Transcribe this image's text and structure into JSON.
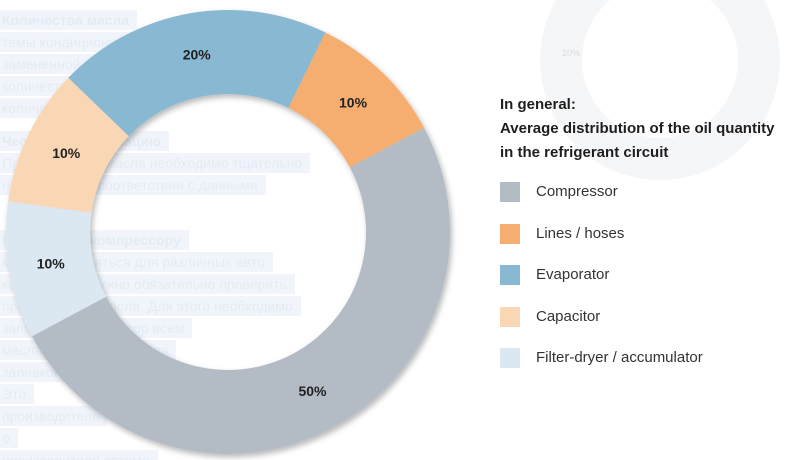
{
  "background_text": [
    "Количества масла",
    "темы кондиционирования после ремонта масло",
    "замененной детали, необходимо доливать",
    "количество масла",
    "количества",
    "Чество спецификацию",
    "При доливании масла необходимо тщательно",
    "ность масла в соответствии с данными",
    "Относится к компрессору",
    "может применяться для различных авто",
    "компрессора нужно обязательно проверить",
    "применяемого масла. Для этого необходимо",
    "заправить компрессор всем",
    "масла (количество масла",
    "заливкой необходимо",
    "Это",
    "производителя",
    "о",
    "производителя автомо"
  ],
  "background_ghost_label": "20%",
  "legend": {
    "title_line1": "In general:",
    "title_line2": "Average distribution of the oil quantity",
    "title_line3": "in the refrigerant circuit"
  },
  "chart_data": {
    "type": "pie",
    "variant": "donut",
    "title": "In general: Average distribution of the oil quantity in the refrigerant circuit",
    "legend_position": "right",
    "slices": [
      {
        "label": "Compressor",
        "value": 50,
        "display": "50%",
        "color": "#b3bcc5"
      },
      {
        "label": "Filter-dryer / accumulator",
        "value": 10,
        "display": "10%",
        "color": "#dbe7f1"
      },
      {
        "label": "Capacitor",
        "value": 10,
        "display": "10%",
        "color": "#fad7b4"
      },
      {
        "label": "Evaporator",
        "value": 20,
        "display": "20%",
        "color": "#89b8d3"
      },
      {
        "label": "Lines / hoses",
        "value": 10,
        "display": "10%",
        "color": "#f6ae70"
      }
    ],
    "legend_order": [
      "Compressor",
      "Lines / hoses",
      "Evaporator",
      "Capacitor",
      "Filter-dryer / accumulator"
    ]
  }
}
